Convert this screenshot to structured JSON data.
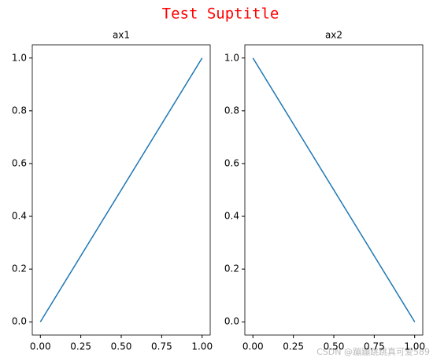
{
  "suptitle": "Test Suptitle",
  "watermark": "CSDN @蹦蹦跳跳真可爱589",
  "chart_data": [
    {
      "type": "line",
      "title": "ax1",
      "x": [
        0,
        1
      ],
      "series": [
        {
          "color": "#1f77b4",
          "values": [
            0,
            1
          ]
        }
      ],
      "xlim": [
        -0.05,
        1.05
      ],
      "ylim": [
        -0.05,
        1.05
      ],
      "xticks": [
        {
          "value": 0,
          "label": "0.00"
        },
        0.25,
        {
          "value": 0.5,
          "label": "0.50"
        },
        0.75,
        {
          "value": 1,
          "label": "1.00"
        }
      ],
      "yticks": [
        {
          "value": 0,
          "label": "0.0"
        },
        0.2,
        0.4,
        0.6,
        0.8,
        {
          "value": 1,
          "label": "1.0"
        }
      ]
    },
    {
      "type": "line",
      "title": "ax2",
      "x": [
        0,
        1
      ],
      "series": [
        {
          "color": "#1f77b4",
          "values": [
            1,
            0
          ]
        }
      ],
      "xlim": [
        -0.05,
        1.05
      ],
      "ylim": [
        -0.05,
        1.05
      ],
      "xticks": [
        {
          "value": 0,
          "label": "0.00"
        },
        0.25,
        {
          "value": 0.5,
          "label": "0.50"
        },
        0.75,
        {
          "value": 1,
          "label": "1.00"
        }
      ],
      "yticks": [
        {
          "value": 0,
          "label": "0.0"
        },
        0.2,
        0.4,
        0.6,
        0.8,
        {
          "value": 1,
          "label": "1.0"
        }
      ]
    }
  ]
}
